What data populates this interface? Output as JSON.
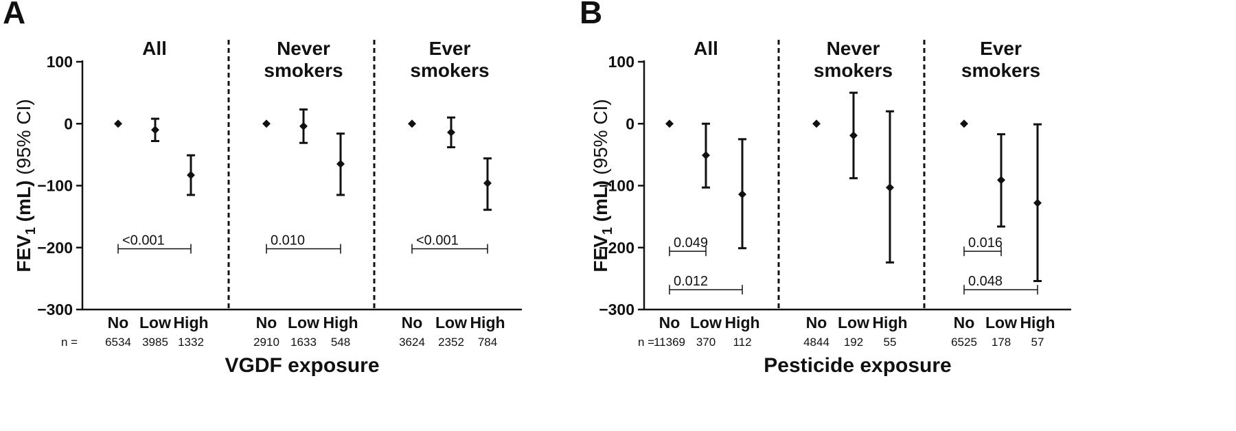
{
  "chart_data": [
    {
      "type": "scatter",
      "panel_label": "A",
      "ylabel_main": "FEV",
      "ylabel_sub": "1",
      "ylabel_unit": " (mL)",
      "ylabel_ci": " (95% CI)",
      "xlabel": "VGDF exposure",
      "ylim": [
        -300,
        100
      ],
      "yticks": [
        "100",
        "0",
        "−100",
        "−200",
        "−300"
      ],
      "categories": [
        "No",
        "Low",
        "High"
      ],
      "n_label": "n =",
      "error_bars": true,
      "subgroups": [
        {
          "title": [
            "All"
          ],
          "values": [
            0,
            -10,
            -83
          ],
          "ci_low": [
            0,
            -28,
            -115
          ],
          "ci_high": [
            0,
            8,
            -51
          ],
          "n": [
            "6534",
            "3985",
            "1332"
          ],
          "pvalues": [
            {
              "label": "<0.001",
              "from": 0,
              "to": 2,
              "y": -202
            }
          ]
        },
        {
          "title": [
            "Never",
            "smokers"
          ],
          "values": [
            0,
            -4,
            -65
          ],
          "ci_low": [
            0,
            -31,
            -115
          ],
          "ci_high": [
            0,
            23,
            -16
          ],
          "n": [
            "2910",
            "1633",
            "548"
          ],
          "pvalues": [
            {
              "label": "0.010",
              "from": 0,
              "to": 2,
              "y": -202
            }
          ]
        },
        {
          "title": [
            "Ever",
            "smokers"
          ],
          "values": [
            0,
            -14,
            -96
          ],
          "ci_low": [
            0,
            -38,
            -139
          ],
          "ci_high": [
            0,
            10,
            -56
          ],
          "n": [
            "3624",
            "2352",
            "784"
          ],
          "pvalues": [
            {
              "label": "<0.001",
              "from": 0,
              "to": 2,
              "y": -202
            }
          ]
        }
      ]
    },
    {
      "type": "scatter",
      "panel_label": "B",
      "ylabel_main": "FEV",
      "ylabel_sub": "1",
      "ylabel_unit": " (mL)",
      "ylabel_ci": " (95% CI)",
      "xlabel": "Pesticide exposure",
      "ylim": [
        -300,
        100
      ],
      "yticks": [
        "100",
        "0",
        "−100",
        "−200",
        "−300"
      ],
      "categories": [
        "No",
        "Low",
        "High"
      ],
      "n_label": "n =",
      "error_bars": true,
      "subgroups": [
        {
          "title": [
            "All"
          ],
          "values": [
            0,
            -51,
            -114
          ],
          "ci_low": [
            0,
            -103,
            -201
          ],
          "ci_high": [
            0,
            0,
            -25
          ],
          "n": [
            "11369",
            "370",
            "112"
          ],
          "pvalues": [
            {
              "label": "0.049",
              "from": 0,
              "to": 1,
              "y": -206
            },
            {
              "label": "0.012",
              "from": 0,
              "to": 2,
              "y": -268
            }
          ]
        },
        {
          "title": [
            "Never",
            "smokers"
          ],
          "values": [
            0,
            -19,
            -103
          ],
          "ci_low": [
            0,
            -88,
            -224
          ],
          "ci_high": [
            0,
            50,
            20
          ],
          "n": [
            "4844",
            "192",
            "55"
          ],
          "pvalues": []
        },
        {
          "title": [
            "Ever",
            "smokers"
          ],
          "values": [
            0,
            -91,
            -128
          ],
          "ci_low": [
            0,
            -166,
            -254
          ],
          "ci_high": [
            0,
            -17,
            -1
          ],
          "n": [
            "6525",
            "178",
            "57"
          ],
          "pvalues": [
            {
              "label": "0.016",
              "from": 0,
              "to": 1,
              "y": -206
            },
            {
              "label": "0.048",
              "from": 0,
              "to": 2,
              "y": -268
            }
          ]
        }
      ]
    }
  ]
}
